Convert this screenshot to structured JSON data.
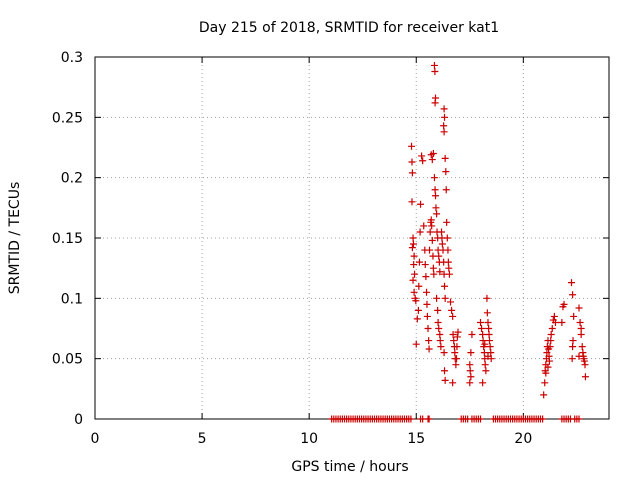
{
  "chart_data": {
    "type": "scatter",
    "title": "Day 215 of 2018, SRMTID for receiver kat1",
    "xlabel": "GPS time / hours",
    "ylabel": "SRMTID / TECUs",
    "xlim": [
      0,
      24
    ],
    "ylim": [
      0,
      0.3
    ],
    "x_ticks": [
      0,
      5,
      10,
      15,
      20
    ],
    "x_tick_labels": [
      "0",
      "5",
      "10",
      "15",
      "20"
    ],
    "y_ticks": [
      0,
      0.05,
      0.1,
      0.15,
      0.2,
      0.25,
      0.3
    ],
    "y_tick_labels": [
      "0",
      "0.05",
      "0.1",
      "0.15",
      "0.2",
      "0.25",
      "0.3"
    ],
    "grid": true,
    "marker": "plus",
    "color": "#cc0000",
    "series": [
      {
        "name": "SRMTID",
        "points": [
          [
            11.05,
            0
          ],
          [
            11.15,
            0
          ],
          [
            11.25,
            0
          ],
          [
            11.35,
            0
          ],
          [
            11.45,
            0
          ],
          [
            11.55,
            0
          ],
          [
            11.65,
            0
          ],
          [
            11.75,
            0
          ],
          [
            11.85,
            0
          ],
          [
            11.95,
            0
          ],
          [
            12.05,
            0
          ],
          [
            12.15,
            0
          ],
          [
            12.25,
            0
          ],
          [
            12.35,
            0
          ],
          [
            12.45,
            0
          ],
          [
            12.55,
            0
          ],
          [
            12.65,
            0
          ],
          [
            12.75,
            0
          ],
          [
            12.85,
            0
          ],
          [
            12.95,
            0
          ],
          [
            13.05,
            0
          ],
          [
            13.15,
            0
          ],
          [
            13.25,
            0
          ],
          [
            13.35,
            0
          ],
          [
            13.45,
            0
          ],
          [
            13.55,
            0
          ],
          [
            13.65,
            0
          ],
          [
            13.75,
            0
          ],
          [
            13.85,
            0
          ],
          [
            13.95,
            0
          ],
          [
            14.05,
            0
          ],
          [
            14.15,
            0
          ],
          [
            14.25,
            0
          ],
          [
            14.35,
            0
          ],
          [
            14.45,
            0
          ],
          [
            14.55,
            0
          ],
          [
            14.65,
            0
          ],
          [
            14.75,
            0
          ],
          [
            15.2,
            0
          ],
          [
            15.3,
            0
          ],
          [
            15.55,
            0
          ],
          [
            15.6,
            0
          ],
          [
            17.1,
            0
          ],
          [
            17.2,
            0
          ],
          [
            17.3,
            0
          ],
          [
            17.4,
            0
          ],
          [
            17.6,
            0
          ],
          [
            17.7,
            0
          ],
          [
            17.8,
            0
          ],
          [
            17.9,
            0
          ],
          [
            18.0,
            0
          ],
          [
            18.6,
            0
          ],
          [
            18.7,
            0
          ],
          [
            18.8,
            0
          ],
          [
            18.9,
            0
          ],
          [
            19.0,
            0
          ],
          [
            19.1,
            0
          ],
          [
            19.2,
            0
          ],
          [
            19.3,
            0
          ],
          [
            19.4,
            0
          ],
          [
            19.5,
            0
          ],
          [
            19.6,
            0
          ],
          [
            19.7,
            0
          ],
          [
            19.8,
            0
          ],
          [
            19.9,
            0
          ],
          [
            20.0,
            0
          ],
          [
            20.1,
            0
          ],
          [
            20.2,
            0
          ],
          [
            20.3,
            0
          ],
          [
            20.4,
            0
          ],
          [
            20.5,
            0
          ],
          [
            20.6,
            0
          ],
          [
            20.7,
            0
          ],
          [
            20.8,
            0
          ],
          [
            20.9,
            0
          ],
          [
            21.8,
            0
          ],
          [
            21.9,
            0
          ],
          [
            22.0,
            0
          ],
          [
            22.1,
            0
          ],
          [
            22.2,
            0
          ],
          [
            22.4,
            0
          ],
          [
            22.5,
            0
          ],
          [
            22.6,
            0
          ],
          [
            14.78,
            0.226
          ],
          [
            14.8,
            0.213
          ],
          [
            14.82,
            0.204
          ],
          [
            14.8,
            0.18
          ],
          [
            14.85,
            0.15
          ],
          [
            14.87,
            0.145
          ],
          [
            14.82,
            0.142
          ],
          [
            14.9,
            0.135
          ],
          [
            14.88,
            0.128
          ],
          [
            14.92,
            0.12
          ],
          [
            14.85,
            0.115
          ],
          [
            14.9,
            0.105
          ],
          [
            14.95,
            0.1
          ],
          [
            14.98,
            0.098
          ],
          [
            15.0,
            0.062
          ],
          [
            15.05,
            0.083
          ],
          [
            15.1,
            0.09
          ],
          [
            15.12,
            0.11
          ],
          [
            15.15,
            0.13
          ],
          [
            15.18,
            0.155
          ],
          [
            15.2,
            0.178
          ],
          [
            15.25,
            0.218
          ],
          [
            15.3,
            0.214
          ],
          [
            15.35,
            0.16
          ],
          [
            15.4,
            0.14
          ],
          [
            15.42,
            0.128
          ],
          [
            15.45,
            0.118
          ],
          [
            15.48,
            0.105
          ],
          [
            15.5,
            0.095
          ],
          [
            15.52,
            0.085
          ],
          [
            15.55,
            0.075
          ],
          [
            15.58,
            0.065
          ],
          [
            15.6,
            0.058
          ],
          [
            15.62,
            0.14
          ],
          [
            15.65,
            0.155
          ],
          [
            15.68,
            0.163
          ],
          [
            15.7,
            0.165
          ],
          [
            15.72,
            0.16
          ],
          [
            15.75,
            0.148
          ],
          [
            15.78,
            0.135
          ],
          [
            15.8,
            0.125
          ],
          [
            15.82,
            0.12
          ],
          [
            15.7,
            0.219
          ],
          [
            15.75,
            0.215
          ],
          [
            15.8,
            0.22
          ],
          [
            15.85,
            0.2
          ],
          [
            15.88,
            0.19
          ],
          [
            15.9,
            0.185
          ],
          [
            15.92,
            0.175
          ],
          [
            15.95,
            0.17
          ],
          [
            15.97,
            0.155
          ],
          [
            16.0,
            0.15
          ],
          [
            16.02,
            0.14
          ],
          [
            16.05,
            0.135
          ],
          [
            16.08,
            0.13
          ],
          [
            16.1,
            0.122
          ],
          [
            15.85,
            0.293
          ],
          [
            15.87,
            0.288
          ],
          [
            15.9,
            0.266
          ],
          [
            15.88,
            0.262
          ],
          [
            15.95,
            0.1
          ],
          [
            16.0,
            0.09
          ],
          [
            16.02,
            0.08
          ],
          [
            16.05,
            0.075
          ],
          [
            16.1,
            0.07
          ],
          [
            16.12,
            0.065
          ],
          [
            16.15,
            0.06
          ],
          [
            16.18,
            0.155
          ],
          [
            16.2,
            0.15
          ],
          [
            16.22,
            0.145
          ],
          [
            16.25,
            0.14
          ],
          [
            16.28,
            0.13
          ],
          [
            16.3,
            0.12
          ],
          [
            16.32,
            0.11
          ],
          [
            16.35,
            0.1
          ],
          [
            16.3,
            0.257
          ],
          [
            16.32,
            0.25
          ],
          [
            16.28,
            0.243
          ],
          [
            16.3,
            0.238
          ],
          [
            16.35,
            0.216
          ],
          [
            16.38,
            0.205
          ],
          [
            16.4,
            0.19
          ],
          [
            16.42,
            0.163
          ],
          [
            16.45,
            0.15
          ],
          [
            16.48,
            0.14
          ],
          [
            16.5,
            0.13
          ],
          [
            16.52,
            0.125
          ],
          [
            16.55,
            0.12
          ],
          [
            16.3,
            0.055
          ],
          [
            16.32,
            0.04
          ],
          [
            16.35,
            0.032
          ],
          [
            16.6,
            0.097
          ],
          [
            16.65,
            0.09
          ],
          [
            16.7,
            0.085
          ],
          [
            16.72,
            0.07
          ],
          [
            16.75,
            0.065
          ],
          [
            16.78,
            0.06
          ],
          [
            16.8,
            0.055
          ],
          [
            16.82,
            0.05
          ],
          [
            16.85,
            0.045
          ],
          [
            16.7,
            0.03
          ],
          [
            16.9,
            0.06
          ],
          [
            16.92,
            0.068
          ],
          [
            16.95,
            0.072
          ],
          [
            16.88,
            0.05
          ],
          [
            17.5,
            0.045
          ],
          [
            17.52,
            0.04
          ],
          [
            17.55,
            0.035
          ],
          [
            17.5,
            0.03
          ],
          [
            17.55,
            0.055
          ],
          [
            17.6,
            0.07
          ],
          [
            18.0,
            0.08
          ],
          [
            18.05,
            0.075
          ],
          [
            18.1,
            0.07
          ],
          [
            18.12,
            0.065
          ],
          [
            18.15,
            0.06
          ],
          [
            18.18,
            0.055
          ],
          [
            18.2,
            0.05
          ],
          [
            18.22,
            0.045
          ],
          [
            18.25,
            0.04
          ],
          [
            18.1,
            0.03
          ],
          [
            18.3,
            0.1
          ],
          [
            18.32,
            0.088
          ],
          [
            18.35,
            0.08
          ],
          [
            18.38,
            0.075
          ],
          [
            18.4,
            0.07
          ],
          [
            18.42,
            0.065
          ],
          [
            18.45,
            0.06
          ],
          [
            18.48,
            0.055
          ],
          [
            18.5,
            0.05
          ],
          [
            18.2,
            0.062
          ],
          [
            18.35,
            0.052
          ],
          [
            20.95,
            0.02
          ],
          [
            21.0,
            0.03
          ],
          [
            21.02,
            0.04
          ],
          [
            21.05,
            0.045
          ],
          [
            21.08,
            0.05
          ],
          [
            21.1,
            0.055
          ],
          [
            21.12,
            0.06
          ],
          [
            21.15,
            0.065
          ],
          [
            21.18,
            0.058
          ],
          [
            21.2,
            0.052
          ],
          [
            21.22,
            0.048
          ],
          [
            21.25,
            0.06
          ],
          [
            21.28,
            0.065
          ],
          [
            21.3,
            0.07
          ],
          [
            21.35,
            0.075
          ],
          [
            21.4,
            0.082
          ],
          [
            21.45,
            0.085
          ],
          [
            21.5,
            0.08
          ],
          [
            21.15,
            0.043
          ],
          [
            21.05,
            0.038
          ],
          [
            21.8,
            0.08
          ],
          [
            21.85,
            0.093
          ],
          [
            21.9,
            0.095
          ],
          [
            22.25,
            0.113
          ],
          [
            22.3,
            0.103
          ],
          [
            22.35,
            0.085
          ],
          [
            22.32,
            0.065
          ],
          [
            22.3,
            0.06
          ],
          [
            22.28,
            0.05
          ],
          [
            22.6,
            0.092
          ],
          [
            22.65,
            0.08
          ],
          [
            22.7,
            0.07
          ],
          [
            22.75,
            0.06
          ],
          [
            22.78,
            0.055
          ],
          [
            22.8,
            0.052
          ],
          [
            22.82,
            0.05
          ],
          [
            22.85,
            0.048
          ],
          [
            22.88,
            0.045
          ],
          [
            22.9,
            0.035
          ],
          [
            22.7,
            0.075
          ],
          [
            22.6,
            0.052
          ]
        ]
      }
    ]
  }
}
